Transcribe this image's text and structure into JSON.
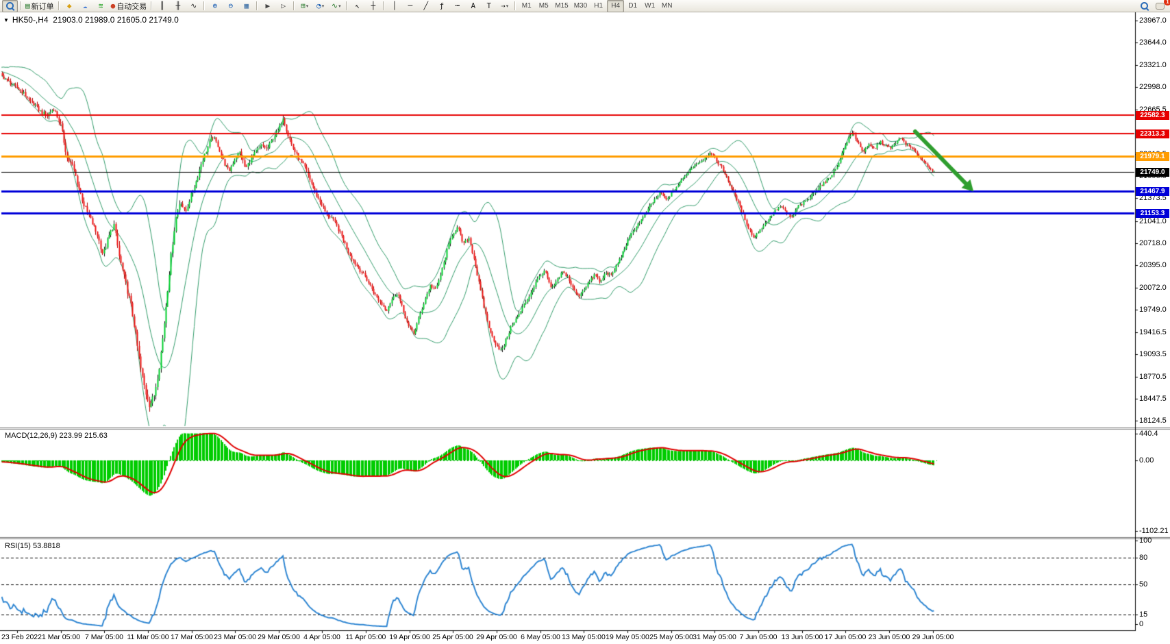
{
  "toolbar": {
    "buttons": [
      {
        "id": "market-watch",
        "css": "mag",
        "pressed": true
      },
      {
        "id": "new-order",
        "glyph": "▤",
        "color": "#2e7d32",
        "label": "新订单",
        "sep": true
      },
      {
        "id": "profiles",
        "glyph": "◆",
        "color": "#d8a013",
        "sep": true
      },
      {
        "id": "chart-window",
        "glyph": "☁",
        "color": "#4a7fd6"
      },
      {
        "id": "signals",
        "glyph": "≋",
        "color": "#21a121"
      },
      {
        "id": "auto-trading",
        "glyph": "●",
        "color": "#cc4125",
        "label": "自动交易"
      },
      {
        "id": "bar-chart",
        "glyph": "║",
        "color": "#333",
        "sep": true
      },
      {
        "id": "candlestick-chart",
        "glyph": "╫",
        "color": "#333"
      },
      {
        "id": "line-chart",
        "glyph": "∿",
        "color": "#333"
      },
      {
        "id": "zoom-in",
        "glyph": "⊕",
        "color": "#1b5fb4",
        "sep": true
      },
      {
        "id": "zoom-out",
        "glyph": "⊖",
        "color": "#1b5fb4"
      },
      {
        "id": "tile-windows",
        "glyph": "▦",
        "color": "#3a6ea5"
      },
      {
        "id": "auto-scroll",
        "glyph": "▶",
        "color": "#444",
        "sep": true
      },
      {
        "id": "chart-shift",
        "glyph": "▷",
        "color": "#444"
      },
      {
        "id": "new-chart",
        "glyph": "⊞",
        "color": "#2e7d32",
        "dropdown": true,
        "sep": true
      },
      {
        "id": "periods",
        "glyph": "◔",
        "color": "#1b5fb4",
        "dropdown": true
      },
      {
        "id": "indicators",
        "glyph": "∿",
        "color": "#2e7d32",
        "dropdown": true
      },
      {
        "id": "cursor",
        "glyph": "↖",
        "color": "#222",
        "sep": true
      },
      {
        "id": "crosshair",
        "glyph": "┼",
        "color": "#222"
      },
      {
        "id": "vertical-line",
        "glyph": "│",
        "color": "#222",
        "sep": true
      },
      {
        "id": "horizontal-line",
        "glyph": "─",
        "color": "#222"
      },
      {
        "id": "trendline",
        "glyph": "╱",
        "color": "#222"
      },
      {
        "id": "fibonacci",
        "glyph": "ƒ",
        "color": "#222"
      },
      {
        "id": "channel",
        "glyph": "┅",
        "color": "#222"
      },
      {
        "id": "text",
        "glyph": "A",
        "color": "#222"
      },
      {
        "id": "text-label",
        "glyph": "T",
        "color": "#222"
      },
      {
        "id": "arrows",
        "glyph": "⇢",
        "color": "#222",
        "dropdown": true
      }
    ],
    "timeframes": {
      "items": [
        "M1",
        "M5",
        "M15",
        "M30",
        "H1",
        "H4",
        "D1",
        "W1",
        "MN"
      ],
      "active": "H4"
    },
    "right": [
      {
        "id": "search",
        "css": "mag"
      },
      {
        "id": "notifications",
        "css": "bubble",
        "badge": "1"
      }
    ]
  },
  "chart": {
    "title_marker": "▼",
    "title": "HK50-,H4  21903.0 21989.0 21605.0 21749.0",
    "macd_label": "MACD(12,26,9) 223.99 215.63",
    "rsi_label": "RSI(15) 53.8818",
    "y_axis": {
      "ticks": [
        [
          23967.0,
          "23967.0"
        ],
        [
          23644.0,
          "23644.0"
        ],
        [
          23321.0,
          "23321.0"
        ],
        [
          22998.0,
          "22998.0"
        ],
        [
          22665.5,
          "22665.5"
        ],
        [
          22019.5,
          "22019.5"
        ],
        [
          21696.5,
          "21696.5"
        ],
        [
          21373.5,
          "21373.5"
        ],
        [
          21041.0,
          "21041.0"
        ],
        [
          20718.0,
          "20718.0"
        ],
        [
          20395.0,
          "20395.0"
        ],
        [
          20072.0,
          "20072.0"
        ],
        [
          19749.0,
          "19749.0"
        ],
        [
          19416.5,
          "19416.5"
        ],
        [
          19093.5,
          "19093.5"
        ],
        [
          18770.5,
          "18770.5"
        ],
        [
          18447.5,
          "18447.5"
        ],
        [
          18124.5,
          "18124.5"
        ]
      ]
    },
    "x_axis": {
      "ticks": [
        [
          25,
          "23 Feb 2022"
        ],
        [
          89,
          "1 Mar 05:00"
        ],
        [
          152,
          "7 Mar 05:00"
        ],
        [
          216,
          "11 Mar 05:00"
        ],
        [
          280,
          "17 Mar 05:00"
        ],
        [
          343,
          "23 Mar 05:00"
        ],
        [
          407,
          "29 Mar 05:00"
        ],
        [
          470,
          "4 Apr 05:00"
        ],
        [
          534,
          "11 Apr 05:00"
        ],
        [
          598,
          "19 Apr 05:00"
        ],
        [
          661,
          "25 Apr 05:00"
        ],
        [
          725,
          "29 Apr 05:00"
        ],
        [
          789,
          "6 May 05:00"
        ],
        [
          852,
          "13 May 05:00"
        ],
        [
          916,
          "19 May 05:00"
        ],
        [
          980,
          "25 May 05:00"
        ],
        [
          1043,
          "31 May 05:00"
        ],
        [
          1107,
          "7 Jun 05:00"
        ],
        [
          1171,
          "13 Jun 05:00"
        ],
        [
          1234,
          "17 Jun 05:00"
        ],
        [
          1298,
          "23 Jun 05:00"
        ],
        [
          1362,
          "29 Jun 05:00"
        ]
      ]
    },
    "price_lines": [
      {
        "price": 22582.3,
        "label": "22582.3",
        "color": "#e60000",
        "width": 2
      },
      {
        "price": 22313.3,
        "label": "22313.3",
        "color": "#e60000",
        "width": 2
      },
      {
        "price": 21979.1,
        "label": "21979.1",
        "color": "#ff9c00",
        "width": 3
      },
      {
        "price": 21749.0,
        "label": "21749.0",
        "color": "#000000",
        "width": 1
      },
      {
        "price": 21467.9,
        "label": "21467.9",
        "color": "#0000d8",
        "width": 3
      },
      {
        "price": 21153.3,
        "label": "21153.3",
        "color": "#0000d8",
        "width": 3
      }
    ],
    "macd_ticks": [
      [
        615,
        "440.4"
      ],
      [
        654,
        "0.00"
      ],
      [
        757,
        "-1102.21"
      ]
    ],
    "rsi_ticks": [
      [
        771,
        "100"
      ],
      [
        796,
        "80"
      ],
      [
        835,
        "50"
      ],
      [
        879,
        "15"
      ],
      [
        893,
        "0"
      ]
    ]
  },
  "chart_data": {
    "type": "candlestick",
    "symbol": "HK50-",
    "period": "H4",
    "ohlc": {
      "open": "21903.0",
      "high": "21989.0",
      "low": "21605.0",
      "close": "21749.0"
    },
    "price_path": [
      [
        -100,
        23350
      ],
      [
        -60,
        23300
      ],
      [
        -30,
        23240
      ],
      [
        0,
        23180
      ],
      [
        15,
        23050
      ],
      [
        30,
        22950
      ],
      [
        45,
        22780
      ],
      [
        58,
        22650
      ],
      [
        68,
        22570
      ],
      [
        78,
        22690
      ],
      [
        88,
        22450
      ],
      [
        98,
        21950
      ],
      [
        106,
        21840
      ],
      [
        114,
        21550
      ],
      [
        122,
        21280
      ],
      [
        132,
        21060
      ],
      [
        142,
        20830
      ],
      [
        150,
        20550
      ],
      [
        158,
        20800
      ],
      [
        166,
        21000
      ],
      [
        174,
        20500
      ],
      [
        182,
        20180
      ],
      [
        190,
        19850
      ],
      [
        198,
        19380
      ],
      [
        205,
        18900
      ],
      [
        212,
        18550
      ],
      [
        218,
        18350
      ],
      [
        225,
        18500
      ],
      [
        232,
        18900
      ],
      [
        238,
        19400
      ],
      [
        244,
        20000
      ],
      [
        250,
        20600
      ],
      [
        257,
        21120
      ],
      [
        263,
        21350
      ],
      [
        270,
        21150
      ],
      [
        278,
        21400
      ],
      [
        286,
        21620
      ],
      [
        294,
        21900
      ],
      [
        302,
        22100
      ],
      [
        310,
        22280
      ],
      [
        318,
        22140
      ],
      [
        326,
        21900
      ],
      [
        334,
        21760
      ],
      [
        342,
        21950
      ],
      [
        350,
        22050
      ],
      [
        358,
        21800
      ],
      [
        366,
        21950
      ],
      [
        374,
        22060
      ],
      [
        382,
        22150
      ],
      [
        390,
        22090
      ],
      [
        398,
        22250
      ],
      [
        406,
        22360
      ],
      [
        413,
        22560
      ],
      [
        420,
        22300
      ],
      [
        428,
        22090
      ],
      [
        436,
        21950
      ],
      [
        444,
        21840
      ],
      [
        452,
        21650
      ],
      [
        460,
        21450
      ],
      [
        468,
        21300
      ],
      [
        476,
        21140
      ],
      [
        484,
        21090
      ],
      [
        492,
        20950
      ],
      [
        500,
        20790
      ],
      [
        508,
        20600
      ],
      [
        516,
        20450
      ],
      [
        524,
        20340
      ],
      [
        532,
        20240
      ],
      [
        540,
        20100
      ],
      [
        548,
        19950
      ],
      [
        556,
        19840
      ],
      [
        564,
        19740
      ],
      [
        572,
        19900
      ],
      [
        580,
        20000
      ],
      [
        588,
        19740
      ],
      [
        596,
        19500
      ],
      [
        604,
        19400
      ],
      [
        612,
        19650
      ],
      [
        620,
        19900
      ],
      [
        628,
        20100
      ],
      [
        636,
        20040
      ],
      [
        644,
        20300
      ],
      [
        652,
        20600
      ],
      [
        660,
        20850
      ],
      [
        668,
        20950
      ],
      [
        676,
        20700
      ],
      [
        684,
        20800
      ],
      [
        692,
        20480
      ],
      [
        700,
        20080
      ],
      [
        708,
        19700
      ],
      [
        716,
        19400
      ],
      [
        724,
        19240
      ],
      [
        732,
        19140
      ],
      [
        740,
        19350
      ],
      [
        748,
        19550
      ],
      [
        756,
        19650
      ],
      [
        764,
        19800
      ],
      [
        772,
        19950
      ],
      [
        780,
        20100
      ],
      [
        788,
        20260
      ],
      [
        796,
        20300
      ],
      [
        804,
        20050
      ],
      [
        812,
        20150
      ],
      [
        820,
        20300
      ],
      [
        828,
        20240
      ],
      [
        836,
        20050
      ],
      [
        844,
        19940
      ],
      [
        852,
        20050
      ],
      [
        860,
        20160
      ],
      [
        868,
        20260
      ],
      [
        876,
        20140
      ],
      [
        884,
        20300
      ],
      [
        892,
        20240
      ],
      [
        900,
        20400
      ],
      [
        908,
        20560
      ],
      [
        916,
        20750
      ],
      [
        924,
        20900
      ],
      [
        932,
        21010
      ],
      [
        940,
        21110
      ],
      [
        948,
        21250
      ],
      [
        956,
        21360
      ],
      [
        964,
        21460
      ],
      [
        972,
        21340
      ],
      [
        980,
        21450
      ],
      [
        988,
        21550
      ],
      [
        996,
        21650
      ],
      [
        1004,
        21750
      ],
      [
        1012,
        21850
      ],
      [
        1020,
        21900
      ],
      [
        1028,
        21950
      ],
      [
        1036,
        22050
      ],
      [
        1044,
        21940
      ],
      [
        1052,
        21840
      ],
      [
        1060,
        21700
      ],
      [
        1068,
        21500
      ],
      [
        1076,
        21340
      ],
      [
        1084,
        21150
      ],
      [
        1092,
        20950
      ],
      [
        1100,
        20790
      ],
      [
        1108,
        20900
      ],
      [
        1116,
        21000
      ],
      [
        1124,
        21100
      ],
      [
        1132,
        21200
      ],
      [
        1140,
        21260
      ],
      [
        1148,
        21150
      ],
      [
        1156,
        21090
      ],
      [
        1164,
        21250
      ],
      [
        1172,
        21300
      ],
      [
        1180,
        21360
      ],
      [
        1188,
        21450
      ],
      [
        1196,
        21550
      ],
      [
        1204,
        21600
      ],
      [
        1212,
        21700
      ],
      [
        1220,
        21800
      ],
      [
        1228,
        22000
      ],
      [
        1236,
        22200
      ],
      [
        1244,
        22330
      ],
      [
        1252,
        22190
      ],
      [
        1260,
        22050
      ],
      [
        1268,
        22150
      ],
      [
        1276,
        22090
      ],
      [
        1284,
        22200
      ],
      [
        1292,
        22140
      ],
      [
        1300,
        22100
      ],
      [
        1308,
        22200
      ],
      [
        1316,
        22250
      ],
      [
        1324,
        22140
      ],
      [
        1332,
        22090
      ],
      [
        1340,
        22000
      ],
      [
        1348,
        21900
      ],
      [
        1356,
        21830
      ],
      [
        1364,
        21749
      ]
    ],
    "volatility_path": [
      [
        -100,
        70
      ],
      [
        120,
        130
      ],
      [
        210,
        170
      ],
      [
        280,
        120
      ],
      [
        430,
        95
      ],
      [
        620,
        85
      ],
      [
        760,
        95
      ],
      [
        1000,
        65
      ],
      [
        1240,
        80
      ],
      [
        1364,
        60
      ]
    ],
    "indicators": {
      "bollinger": {
        "period": 20,
        "deviation": 2,
        "color": "#2f9a68"
      },
      "macd": {
        "params": "12,26,9",
        "histogram_color": "#00cc00",
        "signal_color": "#e00000",
        "zero_dot_color": "#00aa00"
      },
      "rsi": {
        "period": 15,
        "color": "#2f86d2",
        "levels": [
          80,
          50,
          15
        ]
      }
    },
    "candle_colors": {
      "bull": "#00ce2d",
      "bear": "#ef1010",
      "bear_wick": "#b00000",
      "bull_wick": "#111111"
    },
    "annotations": {
      "arrow": {
        "from": [
          1336,
          174
        ],
        "to": [
          1410,
          250
        ],
        "color": "#2f9e2f",
        "width": 6
      }
    }
  }
}
